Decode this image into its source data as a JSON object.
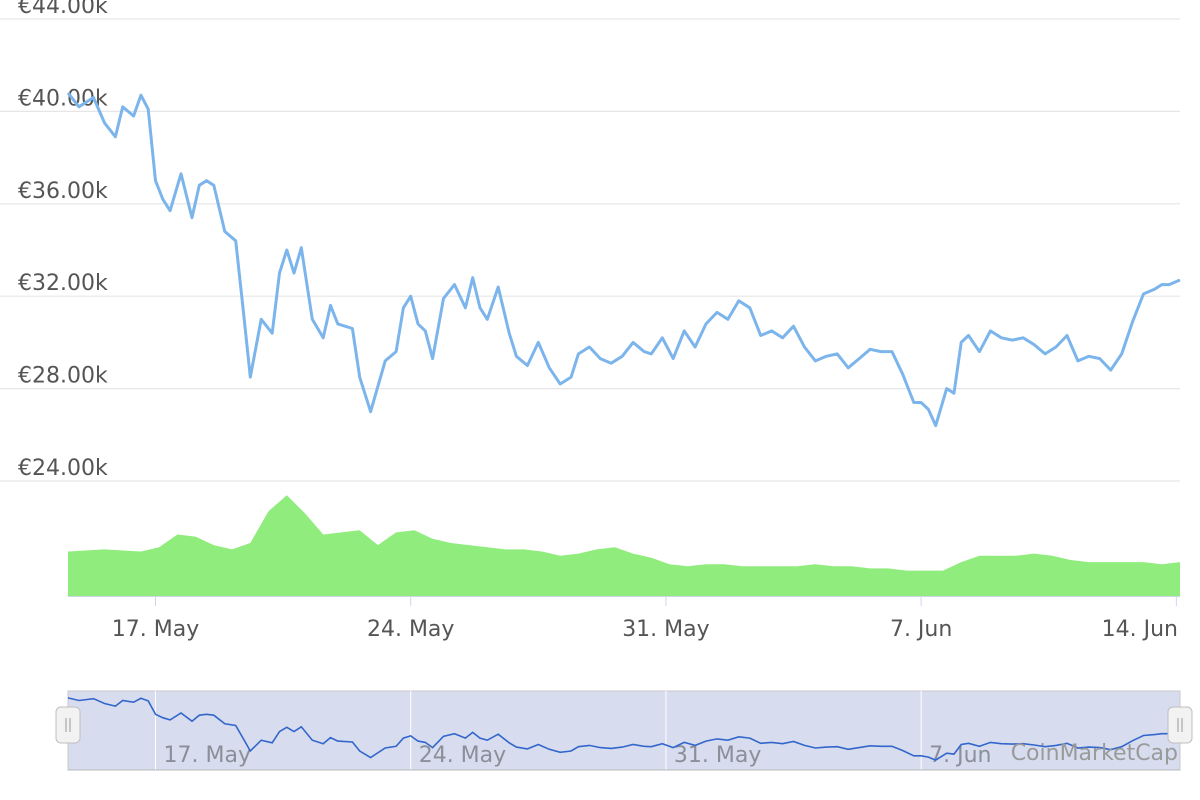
{
  "chart_data": {
    "type": "line",
    "y_axis": {
      "ticks": [
        "€24.00k",
        "€28.00k",
        "€32.00k",
        "€36.00k",
        "€40.00k",
        "€44.00k"
      ],
      "tick_values": [
        24000,
        28000,
        32000,
        36000,
        40000,
        44000
      ],
      "range": [
        21000,
        45000
      ],
      "grid": true
    },
    "x_axis": {
      "ticks": [
        "17. May",
        "24. May",
        "31. May",
        "7. Jun",
        "14. Jun"
      ],
      "tick_days": [
        2.4,
        9.4,
        16.4,
        23.4,
        30.4
      ],
      "range_days": [
        0,
        30.5
      ]
    },
    "series": [
      {
        "kind": "price",
        "color": "#7cb5ec",
        "x": [
          0.0,
          0.3,
          0.7,
          1.0,
          1.3,
          1.5,
          1.8,
          2.0,
          2.2,
          2.4,
          2.6,
          2.8,
          3.1,
          3.4,
          3.6,
          3.8,
          4.0,
          4.3,
          4.6,
          4.8,
          5.0,
          5.3,
          5.6,
          5.8,
          6.0,
          6.2,
          6.4,
          6.7,
          7.0,
          7.2,
          7.4,
          7.8,
          8.0,
          8.3,
          8.7,
          9.0,
          9.2,
          9.4,
          9.6,
          9.8,
          10.0,
          10.3,
          10.6,
          10.9,
          11.1,
          11.3,
          11.5,
          11.8,
          12.1,
          12.3,
          12.6,
          12.9,
          13.2,
          13.5,
          13.8,
          14.0,
          14.3,
          14.6,
          14.9,
          15.2,
          15.5,
          15.8,
          16.0,
          16.3,
          16.6,
          16.9,
          17.2,
          17.5,
          17.8,
          18.1,
          18.4,
          18.7,
          19.0,
          19.3,
          19.6,
          19.9,
          20.2,
          20.5,
          20.8,
          21.1,
          21.4,
          21.7,
          22.0,
          22.3,
          22.6,
          22.9,
          23.2,
          23.4,
          23.6,
          23.8,
          24.1,
          24.3,
          24.5,
          24.7,
          25.0,
          25.3,
          25.6,
          25.9,
          26.2,
          26.5,
          26.8,
          27.1,
          27.4,
          27.7,
          28.0,
          28.3,
          28.6,
          28.9,
          29.2,
          29.5,
          29.8,
          30.0,
          30.2,
          30.5
        ],
        "y": [
          40800,
          40200,
          40600,
          39500,
          38900,
          40200,
          39800,
          40700,
          40100,
          37000,
          36200,
          35700,
          37300,
          35400,
          36800,
          37000,
          36800,
          34800,
          34400,
          31500,
          28500,
          31000,
          30400,
          33000,
          34000,
          33000,
          34100,
          31000,
          30200,
          31600,
          30800,
          30600,
          28500,
          27000,
          29200,
          29600,
          31500,
          32000,
          30800,
          30500,
          29300,
          31900,
          32500,
          31500,
          32800,
          31500,
          31000,
          32400,
          30400,
          29400,
          29000,
          30000,
          28900,
          28200,
          28500,
          29500,
          29800,
          29300,
          29100,
          29400,
          30000,
          29600,
          29500,
          30200,
          29300,
          30500,
          29800,
          30800,
          31300,
          31000,
          31800,
          31500,
          30300,
          30500,
          30200,
          30700,
          29800,
          29200,
          29400,
          29500,
          28900,
          29300,
          29700,
          29600,
          29600,
          28600,
          27400,
          27400,
          27100,
          26400,
          28000,
          27800,
          30000,
          30300,
          29600,
          30500,
          30200,
          30100,
          30200,
          29900,
          29500,
          29800,
          30300,
          29200,
          29400,
          29300,
          28800,
          29500,
          30900,
          32100,
          32300,
          32500,
          32500,
          32700
        ],
        "stroke": 3
      },
      {
        "kind": "volume",
        "color": "#90ed7d",
        "x": [
          0,
          1,
          2,
          2.5,
          3,
          3.5,
          4,
          4.5,
          5,
          5.5,
          6,
          6.5,
          7,
          7.5,
          8,
          8.5,
          9,
          9.5,
          10,
          10.5,
          11,
          11.5,
          12,
          12.5,
          13,
          13.5,
          14,
          14.5,
          15,
          15.5,
          16,
          16.5,
          17,
          17.5,
          18,
          18.5,
          19,
          19.5,
          20,
          20.5,
          21,
          21.5,
          22,
          22.5,
          23,
          23.5,
          24,
          24.5,
          25,
          25.5,
          26,
          26.5,
          27,
          27.5,
          28,
          28.5,
          29,
          29.5,
          30,
          30.5
        ],
        "values": [
          42,
          44,
          42,
          46,
          58,
          56,
          48,
          44,
          50,
          80,
          95,
          78,
          58,
          60,
          62,
          48,
          60,
          62,
          54,
          50,
          48,
          46,
          44,
          44,
          42,
          38,
          40,
          44,
          46,
          40,
          36,
          30,
          28,
          30,
          30,
          28,
          28,
          28,
          28,
          30,
          28,
          28,
          26,
          26,
          24,
          24,
          24,
          32,
          38,
          38,
          38,
          40,
          38,
          34,
          32,
          32,
          32,
          32,
          30,
          32
        ],
        "max": 100
      }
    ],
    "navigator": {
      "ticks": [
        "17. May",
        "24. May",
        "31. May",
        "7. Jun"
      ],
      "color": "#3366cc"
    },
    "watermark": "CoinMarketCap"
  }
}
